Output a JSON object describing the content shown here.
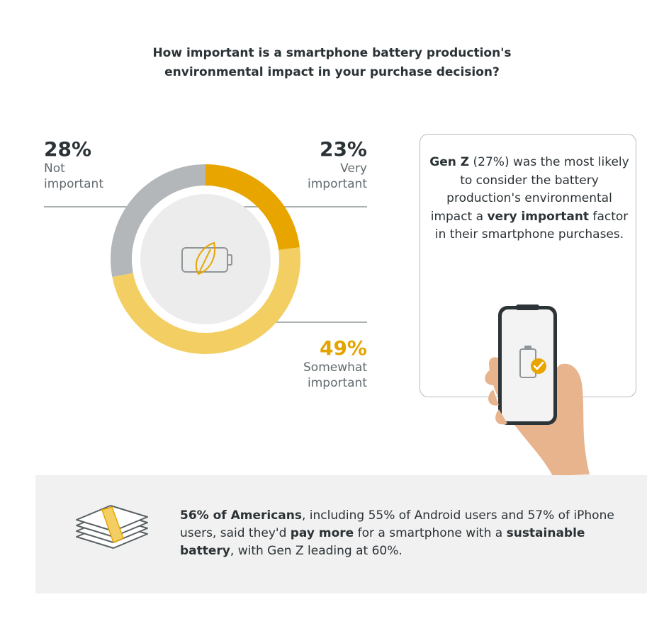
{
  "chart_data": {
    "type": "pie",
    "title": "How important is a smartphone battery production's environmental impact in your purchase decision?",
    "title_lines": [
      "How important is a smartphone battery production's",
      "environmental impact in your purchase decision?"
    ],
    "slices": [
      {
        "label": "Very important",
        "caption": "Very\nimportant",
        "value": 23,
        "value_label": "23%",
        "color": "#e8a500"
      },
      {
        "label": "Somewhat important",
        "caption": "Somewhat\nimportant",
        "value": 49,
        "value_label": "49%",
        "color": "#f3cf63"
      },
      {
        "label": "Not important",
        "caption": "Not\nimportant",
        "value": 28,
        "value_label": "28%",
        "color": "#b3b7b9"
      }
    ],
    "center_icon": "battery-leaf-icon"
  },
  "callout": {
    "parts": [
      {
        "text": "Gen Z",
        "bold": true
      },
      {
        "text": " (27%) was the most likely to consider the battery production's environmental impact a ",
        "bold": false
      },
      {
        "text": "very important",
        "bold": true
      },
      {
        "text": " factor in their smartphone purchases.",
        "bold": false
      }
    ],
    "illustration": "hand-holding-phone-icon",
    "phone_icon": "battery-check-icon"
  },
  "footer": {
    "icon": "money-stack-icon",
    "parts": [
      {
        "text": "56% of Americans",
        "bold": true
      },
      {
        "text": ", including 55% of Android users and 57% of iPhone users, said they'd ",
        "bold": false
      },
      {
        "text": "pay more",
        "bold": true
      },
      {
        "text": " for a smartphone with a ",
        "bold": false
      },
      {
        "text": "sustainable battery",
        "bold": true
      },
      {
        "text": ", with Gen Z leading at 60%.",
        "bold": false
      }
    ]
  },
  "colors": {
    "very": "#e8a500",
    "somewhat": "#f3cf63",
    "not": "#b3b7b9",
    "text": "#2b3236",
    "muted": "#626a6e",
    "footer_bg": "#f1f1f1"
  }
}
